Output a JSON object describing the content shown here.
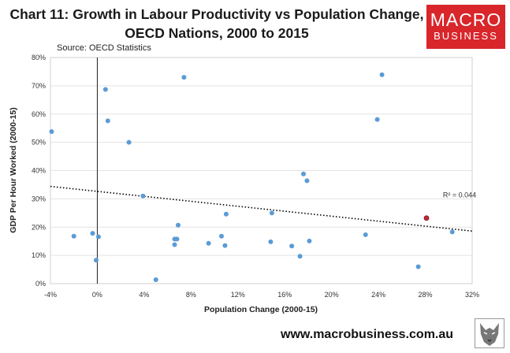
{
  "header": {
    "title_line1": "Chart 11: Growth in Labour Productivity vs Population Change,",
    "title_line2": "OECD Nations, 2000 to 2015",
    "source": "Source: OECD Statistics"
  },
  "logo": {
    "line1": "MACRO",
    "line2": "BUSINESS",
    "color": "#d8262b"
  },
  "footer": {
    "url": "www.macrobusiness.com.au"
  },
  "chart_data": {
    "type": "scatter",
    "xlabel": "Population Change (2000-15)",
    "ylabel": "GDP Per Hour Worked (2000-15)",
    "xlim": [
      -4,
      32
    ],
    "ylim": [
      0,
      80
    ],
    "x_ticks": [
      -4,
      0,
      4,
      8,
      12,
      16,
      20,
      24,
      28,
      32
    ],
    "x_tick_labels": [
      "-4%",
      "0%",
      "4%",
      "8%",
      "12%",
      "16%",
      "20%",
      "24%",
      "28%",
      "32%"
    ],
    "y_ticks": [
      0,
      10,
      20,
      30,
      40,
      50,
      60,
      70,
      80
    ],
    "y_tick_labels": [
      "0%",
      "10%",
      "20%",
      "30%",
      "40%",
      "50%",
      "60%",
      "70%",
      "80%"
    ],
    "point_color": "#5b9bd5",
    "highlight_color": "#c0283a",
    "points": [
      {
        "x": -3.9,
        "y": 53.8
      },
      {
        "x": -2.0,
        "y": 16.8
      },
      {
        "x": -0.4,
        "y": 17.8
      },
      {
        "x": -0.1,
        "y": 8.3
      },
      {
        "x": 0.1,
        "y": 16.6
      },
      {
        "x": 0.7,
        "y": 68.7
      },
      {
        "x": 0.9,
        "y": 57.6
      },
      {
        "x": 2.7,
        "y": 50.0
      },
      {
        "x": 3.9,
        "y": 31.0
      },
      {
        "x": 5.0,
        "y": 1.4
      },
      {
        "x": 6.6,
        "y": 13.8
      },
      {
        "x": 6.6,
        "y": 15.8
      },
      {
        "x": 6.8,
        "y": 15.8
      },
      {
        "x": 6.9,
        "y": 20.7
      },
      {
        "x": 7.4,
        "y": 73.0
      },
      {
        "x": 9.5,
        "y": 14.3
      },
      {
        "x": 10.6,
        "y": 16.8
      },
      {
        "x": 10.9,
        "y": 13.5
      },
      {
        "x": 11.0,
        "y": 24.6
      },
      {
        "x": 14.8,
        "y": 14.8
      },
      {
        "x": 14.9,
        "y": 25.0
      },
      {
        "x": 16.6,
        "y": 13.3
      },
      {
        "x": 17.3,
        "y": 9.7
      },
      {
        "x": 17.6,
        "y": 38.8
      },
      {
        "x": 17.9,
        "y": 36.4
      },
      {
        "x": 18.1,
        "y": 15.1
      },
      {
        "x": 22.9,
        "y": 17.3
      },
      {
        "x": 23.9,
        "y": 58.1
      },
      {
        "x": 24.3,
        "y": 73.9
      },
      {
        "x": 27.4,
        "y": 6.0
      },
      {
        "x": 30.3,
        "y": 18.3
      },
      {
        "x": 28.1,
        "y": 23.2,
        "highlight": true
      }
    ],
    "trendline": {
      "x0": -4,
      "y0": 34.4,
      "x1": 32,
      "y1": 18.6,
      "style": "dotted"
    },
    "r_squared_label": "R² = 0.044",
    "r_squared_pos_data": {
      "x": 29.5,
      "y": 30.5
    }
  }
}
